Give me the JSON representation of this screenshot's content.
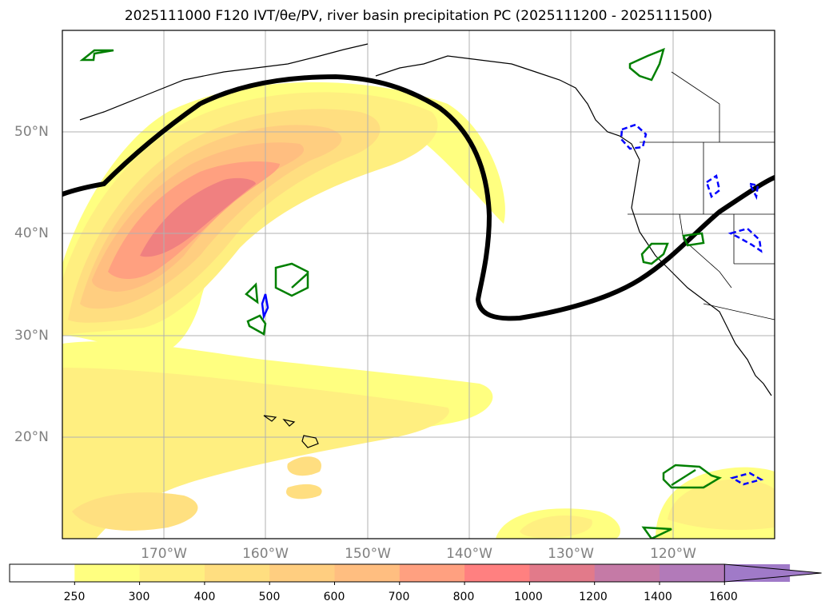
{
  "title": "2025111000 F120 IVT/θe/PV, river basin precipitation PC (2025111200 - 2025111500)",
  "map": {
    "lat_labels": [
      {
        "text": "50°N",
        "lat": 50
      },
      {
        "text": "40°N",
        "lat": 40
      },
      {
        "text": "30°N",
        "lat": 30
      },
      {
        "text": "20°N",
        "lat": 20
      }
    ],
    "lon_labels": [
      {
        "text": "170°W",
        "lon": -170
      },
      {
        "text": "160°W",
        "lon": -160
      },
      {
        "text": "150°W",
        "lon": -150
      },
      {
        "text": "140°W",
        "lon": -140
      },
      {
        "text": "130°W",
        "lon": -130
      },
      {
        "text": "120°W",
        "lon": -120
      }
    ],
    "grid": true
  },
  "colorbar": {
    "ticks": [
      "250",
      "300",
      "400",
      "500",
      "600",
      "700",
      "800",
      "1000",
      "1200",
      "1400",
      "1600"
    ],
    "colors": [
      "#ffffff",
      "#ffff80",
      "#ffef80",
      "#ffde80",
      "#ffce80",
      "#ffbe80",
      "#ffa080",
      "#ff8080",
      "#e27a8a",
      "#c57aa6",
      "#b27ab9",
      "#a07ac8"
    ],
    "extend": "max"
  },
  "colors": {
    "contour_black": "#000000",
    "precip_positive": "#008000",
    "precip_negative": "#0000ff"
  }
}
